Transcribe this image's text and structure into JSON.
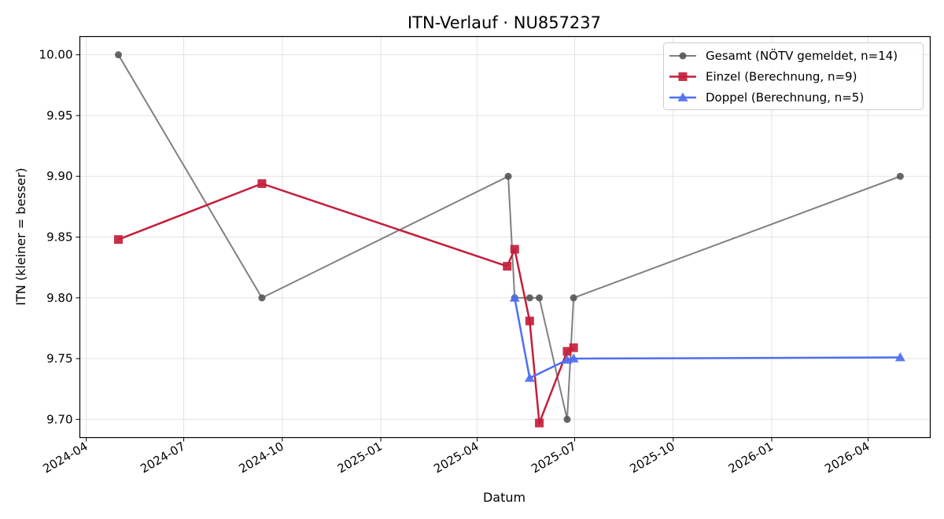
{
  "chart_data": {
    "type": "line",
    "title": "ITN-Verlauf · NU857237",
    "xlabel": "Datum",
    "ylabel": "ITN  (kleiner = besser)",
    "x_axis": {
      "type": "date",
      "range": [
        "2024-03-26",
        "2026-05-29"
      ],
      "ticks": [
        "2024-04-01",
        "2024-07-01",
        "2024-10-01",
        "2025-01-01",
        "2025-04-01",
        "2025-07-01",
        "2025-10-01",
        "2026-01-01",
        "2026-04-01"
      ],
      "tick_labels": [
        "2024-04",
        "2024-07",
        "2024-10",
        "2025-01",
        "2025-04",
        "2025-07",
        "2025-10",
        "2026-01",
        "2026-04"
      ]
    },
    "y_axis": {
      "range": [
        9.685,
        10.015
      ],
      "ticks": [
        9.7,
        9.75,
        9.8,
        9.85,
        9.9,
        9.95,
        10.0
      ],
      "tick_labels": [
        "9.70",
        "9.75",
        "9.80",
        "9.85",
        "9.90",
        "9.95",
        "10.00"
      ]
    },
    "grid": true,
    "legend": "top-right",
    "series": [
      {
        "name": "Gesamt (NÖTV gemeldet, n=14)",
        "color": "#808080",
        "marker": "circle",
        "points": [
          {
            "x": "2024-05-01",
            "y": 10.0
          },
          {
            "x": "2024-09-12",
            "y": 9.8
          },
          {
            "x": "2025-04-30",
            "y": 9.9
          },
          {
            "x": "2025-05-06",
            "y": 9.8
          },
          {
            "x": "2025-05-20",
            "y": 9.8
          },
          {
            "x": "2025-05-29",
            "y": 9.8
          },
          {
            "x": "2025-06-24",
            "y": 9.7
          },
          {
            "x": "2025-06-30",
            "y": 9.8
          },
          {
            "x": "2026-05-01",
            "y": 9.9
          }
        ]
      },
      {
        "name": "Einzel (Berechnung, n=9)",
        "color": "#c41e3a",
        "marker": "square",
        "points": [
          {
            "x": "2024-05-01",
            "y": 9.848
          },
          {
            "x": "2024-09-12",
            "y": 9.894
          },
          {
            "x": "2025-04-29",
            "y": 9.826
          },
          {
            "x": "2025-05-06",
            "y": 9.84
          },
          {
            "x": "2025-05-20",
            "y": 9.781
          },
          {
            "x": "2025-05-29",
            "y": 9.697
          },
          {
            "x": "2025-06-24",
            "y": 9.756
          },
          {
            "x": "2025-06-30",
            "y": 9.759
          }
        ]
      },
      {
        "name": "Doppel (Berechnung, n=5)",
        "color": "#4e6ef2",
        "marker": "triangle",
        "points": [
          {
            "x": "2025-05-06",
            "y": 9.8
          },
          {
            "x": "2025-05-20",
            "y": 9.734
          },
          {
            "x": "2025-06-24",
            "y": 9.749
          },
          {
            "x": "2025-06-30",
            "y": 9.75
          },
          {
            "x": "2026-05-01",
            "y": 9.751
          }
        ]
      }
    ]
  }
}
